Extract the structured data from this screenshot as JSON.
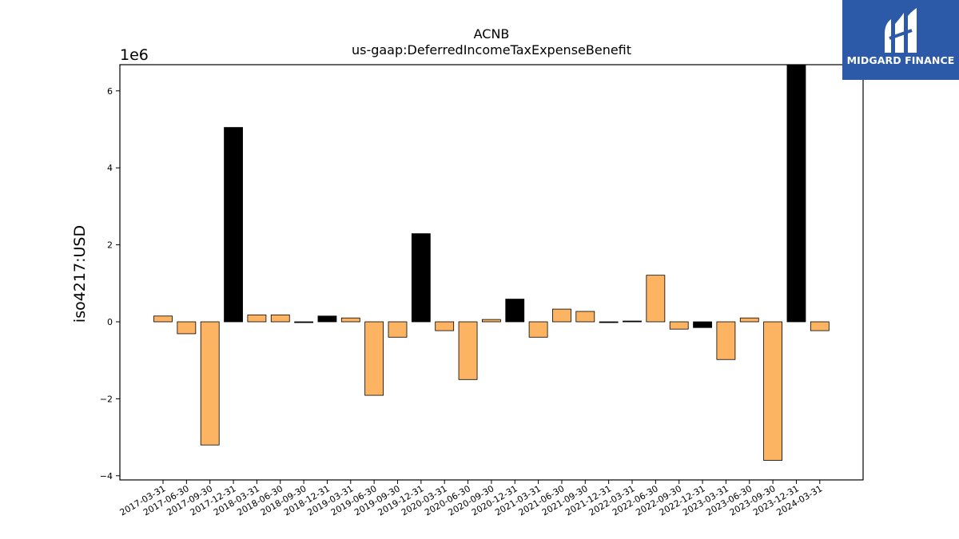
{
  "logo": {
    "text": "MIDGARD FINANCE"
  },
  "chart_data": {
    "type": "bar",
    "title": "ACNB",
    "subtitle": "us-gaap:DeferredIncomeTaxExpenseBenefit",
    "ylabel": "iso4217:USD",
    "xlabel": "",
    "scale_label": "1e6",
    "ylim": [
      -4.15,
      6.7
    ],
    "yticks": [
      -4,
      -2,
      0,
      2,
      4,
      6
    ],
    "ytick_labels": [
      "−4",
      "−2",
      "0",
      "2",
      "4",
      "6"
    ],
    "grid": false,
    "legend": "none",
    "colors": {
      "regular": "#fdb462",
      "highlight": "#000000"
    },
    "categories": [
      "2017-03-31",
      "2017-06-30",
      "2017-09-30",
      "2017-12-31",
      "2018-03-31",
      "2018-06-30",
      "2018-09-30",
      "2018-12-31",
      "2019-03-31",
      "2019-06-30",
      "2019-09-30",
      "2019-12-31",
      "2020-03-31",
      "2020-06-30",
      "2020-09-30",
      "2020-12-31",
      "2021-03-31",
      "2021-06-30",
      "2021-09-30",
      "2021-12-31",
      "2022-03-31",
      "2022-06-30",
      "2022-09-30",
      "2022-12-31",
      "2023-03-31",
      "2023-06-30",
      "2023-09-30",
      "2023-12-31",
      "2024-03-31"
    ],
    "values": [
      0.15,
      -0.31,
      -3.2,
      5.05,
      0.18,
      0.18,
      -0.02,
      0.15,
      0.1,
      -1.91,
      -0.4,
      2.29,
      -0.23,
      -1.5,
      0.06,
      0.59,
      -0.4,
      0.33,
      0.27,
      -0.02,
      0.02,
      1.21,
      -0.19,
      -0.15,
      -0.98,
      0.1,
      -3.6,
      6.7,
      -0.23
    ],
    "highlight": [
      false,
      false,
      false,
      true,
      false,
      false,
      true,
      true,
      false,
      false,
      false,
      true,
      false,
      false,
      false,
      true,
      false,
      false,
      false,
      true,
      true,
      false,
      false,
      true,
      false,
      false,
      false,
      true,
      false
    ]
  }
}
